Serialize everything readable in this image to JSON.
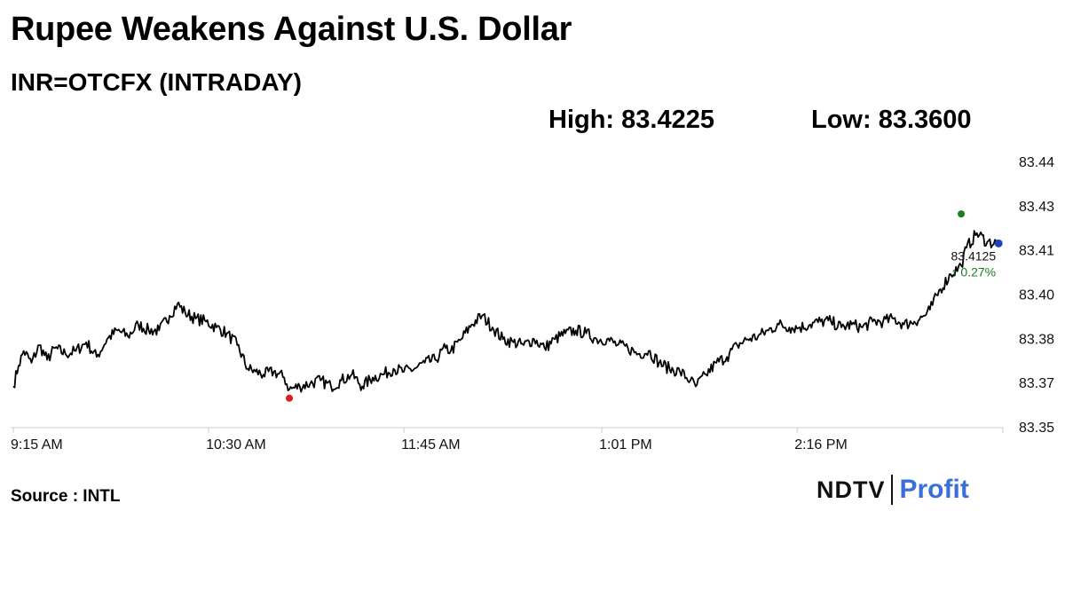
{
  "header": {
    "title": "Rupee Weakens Against U.S. Dollar",
    "subtitle": "INR=OTCFX (INTRADAY)",
    "high": "High: 83.4225",
    "low": "Low: 83.3600"
  },
  "footer": {
    "source": "Source : INTL",
    "logo_ndtv": "NDTV",
    "logo_profit": "Profit"
  },
  "colors": {
    "line": "#000000",
    "high_marker": "#1a7f1a",
    "low_marker": "#e01b1b",
    "last_marker": "#1f3fbf",
    "change_text": "#1a7f1a",
    "axis": "#cccccc",
    "logo_profit": "#3b6fd8"
  },
  "chart_data": {
    "type": "line",
    "title": "INR=OTCFX (INTRADAY)",
    "x_ticks": [
      "9:15 AM",
      "10:30 AM",
      "11:45 AM",
      "1:01 PM",
      "2:16 PM"
    ],
    "x_tick_minutes": [
      0,
      75,
      150,
      226,
      301
    ],
    "x_range_minutes": [
      0,
      380
    ],
    "y_ticks": [
      "83.44",
      "83.43",
      "83.41",
      "83.40",
      "83.38",
      "83.37",
      "83.35"
    ],
    "y_tick_values": [
      83.44,
      83.425,
      83.41,
      83.395,
      83.38,
      83.365,
      83.35
    ],
    "ylim": [
      83.35,
      83.44
    ],
    "grid": false,
    "series": [
      {
        "x_minutes": [
          0,
          2,
          4,
          7,
          10,
          13,
          16,
          20,
          24,
          28,
          32,
          36,
          40,
          44,
          48,
          52,
          56,
          60,
          63,
          66,
          70,
          74,
          78,
          82,
          86,
          90,
          93,
          96,
          100,
          104,
          106,
          110,
          114,
          118,
          122,
          126,
          130,
          134,
          138,
          142,
          146,
          150,
          154,
          158,
          162,
          166,
          168,
          172,
          176,
          180,
          184,
          188,
          192,
          196,
          200,
          204,
          208,
          212,
          216,
          220,
          224,
          228,
          232,
          236,
          240,
          244,
          248,
          252,
          256,
          260,
          262,
          266,
          270,
          274,
          278,
          282,
          286,
          290,
          294,
          298,
          302,
          306,
          310,
          314,
          318,
          322,
          326,
          330,
          334,
          338,
          342,
          346,
          350,
          352,
          356,
          360,
          364,
          366,
          370,
          374,
          378
        ],
        "values": [
          83.364,
          83.371,
          83.376,
          83.372,
          83.378,
          83.373,
          83.377,
          83.375,
          83.376,
          83.379,
          83.374,
          83.38,
          83.383,
          83.381,
          83.385,
          83.383,
          83.383,
          83.388,
          83.392,
          83.389,
          83.387,
          83.386,
          83.384,
          83.382,
          83.378,
          83.37,
          83.369,
          83.368,
          83.369,
          83.367,
          83.363,
          83.364,
          83.365,
          83.366,
          83.364,
          83.366,
          83.368,
          83.364,
          83.367,
          83.368,
          83.37,
          83.369,
          83.37,
          83.372,
          83.373,
          83.377,
          83.376,
          83.38,
          83.385,
          83.388,
          83.384,
          83.38,
          83.379,
          83.378,
          83.38,
          83.377,
          83.38,
          83.382,
          83.383,
          83.382,
          83.38,
          83.38,
          83.378,
          83.377,
          83.375,
          83.376,
          83.372,
          83.37,
          83.369,
          83.366,
          83.364,
          83.368,
          83.372,
          83.374,
          83.378,
          83.38,
          83.381,
          83.383,
          83.385,
          83.384,
          83.384,
          83.385,
          83.386,
          83.386,
          83.384,
          83.385,
          83.384,
          83.386,
          83.386,
          83.387,
          83.385,
          83.386,
          83.388,
          83.39,
          83.397,
          83.402,
          83.405,
          83.411,
          83.416,
          83.413,
          83.4125
        ],
        "high": {
          "x_minute": 364,
          "value": 83.4225
        },
        "low": {
          "x_minute": 106,
          "value": 83.36
        },
        "last": {
          "x_minute": 378,
          "value": 83.4125
        }
      }
    ],
    "annotations": {
      "last_value": "83.4125",
      "change": "↑ 0.27%"
    }
  }
}
